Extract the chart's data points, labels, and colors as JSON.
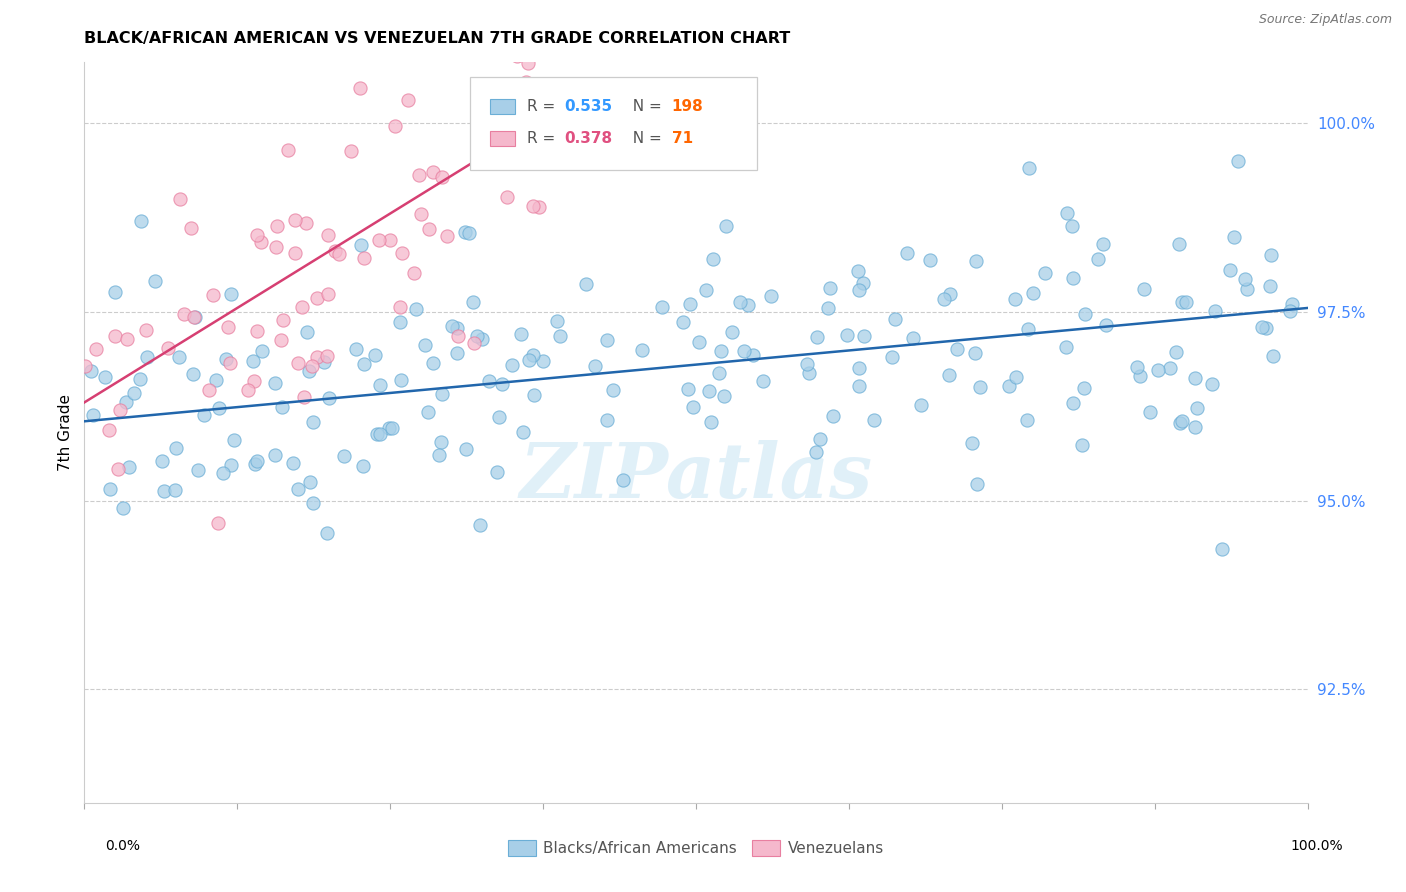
{
  "title": "BLACK/AFRICAN AMERICAN VS VENEZUELAN 7TH GRADE CORRELATION CHART",
  "source": "Source: ZipAtlas.com",
  "ylabel": "7th Grade",
  "yaxis_labels": [
    "92.5%",
    "95.0%",
    "97.5%",
    "100.0%"
  ],
  "yaxis_values": [
    0.925,
    0.95,
    0.975,
    1.0
  ],
  "xaxis_range": [
    0.0,
    1.0
  ],
  "yaxis_range": [
    0.91,
    1.008
  ],
  "blue_R": 0.535,
  "blue_N": 198,
  "pink_R": 0.378,
  "pink_N": 71,
  "blue_color": "#a8cfe8",
  "pink_color": "#f5b8cc",
  "blue_edge_color": "#6baed6",
  "pink_edge_color": "#e87fa0",
  "blue_line_color": "#2166ac",
  "pink_line_color": "#d63f72",
  "legend_label_blue": "Blacks/African Americans",
  "legend_label_pink": "Venezuelans",
  "watermark": "ZIPatlas",
  "bg_color": "#ffffff",
  "grid_color": "#cccccc",
  "title_fontsize": 11.5,
  "source_fontsize": 9,
  "blue_seed": 42,
  "pink_seed": 7,
  "blue_line_start_x": 0.0,
  "blue_line_end_x": 1.0,
  "blue_line_start_y": 0.9605,
  "blue_line_end_y": 0.9755,
  "pink_line_start_x": 0.0,
  "pink_line_end_x": 0.38,
  "pink_line_start_y": 0.963,
  "pink_line_end_y": 1.001,
  "legend_R_blue_color": "#3399ff",
  "legend_N_blue_color": "#ff6600",
  "legend_R_pink_color": "#e05080",
  "legend_N_pink_color": "#ff6600",
  "yaxis_label_color": "#4488ff",
  "blue_scatter_std": 0.0095,
  "pink_scatter_std": 0.01
}
